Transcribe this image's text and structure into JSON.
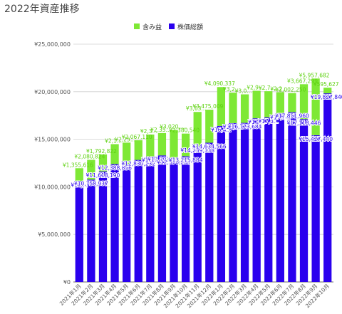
{
  "title": "2022年資産推移",
  "legend": [
    {
      "label": "含み益",
      "color": "#7ee835"
    },
    {
      "label": "株価総額",
      "color": "#2a00ee"
    }
  ],
  "chart_data": {
    "type": "bar",
    "stacked": true,
    "title": "2022年資産推移",
    "categories": [
      "2021年1月",
      "2021年2月",
      "2021年3月",
      "2021年4月",
      "2021年5月",
      "2021年6月",
      "2021年7月",
      "2021年8月",
      "2021年9月",
      "2021年10月",
      "2021年11月",
      "2021年12月",
      "2022年1月",
      "2022年2月",
      "2022年3月",
      "2022年4月",
      "2022年5月",
      "2022年6月",
      "2022年7月",
      "2022年8月",
      "2022年9月",
      "2022年10月"
    ],
    "ylim": [
      0,
      25000000
    ],
    "yticks": [
      0,
      5000000,
      10000000,
      15000000,
      20000000,
      25000000
    ],
    "ytick_labels": [
      "¥0",
      "¥5,000,000",
      "¥10,000,000",
      "¥15,000,000",
      "¥20,000,000",
      "¥25,000,000"
    ],
    "legend_position": "top",
    "grid": true,
    "series": [
      {
        "name": "株価総額",
        "color": "#2a00ee",
        "values": [
          10600000,
          10758937,
          11618190,
          12388856,
          12400000,
          12830232,
          13200000,
          13303000,
          12970207,
          13215884,
          14239338,
          14634566,
          16400000,
          16700000,
          16723684,
          17200000,
          17300000,
          17700000,
          17851960,
          17118446,
          15427440,
          19827840
        ],
        "labels": [
          "¥10,...",
          "¥10,758,937",
          "¥11,618,190",
          "¥12,388,856",
          "",
          "¥12,830,232",
          "¥13,...",
          "¥13,303,...",
          "¥12,970,207",
          "¥13,215,884",
          "¥14,239,338",
          "¥14,634,566",
          "¥16,4...",
          "¥16,7...",
          "¥16,723,684",
          "¥17,...",
          "¥17,3...",
          "¥17,7...",
          "¥17,851,960",
          "¥17,118,446",
          "¥15,427,440",
          "¥19,827,840"
        ]
      },
      {
        "name": "含み益",
        "color": "#7ee835",
        "values": [
          1355616,
          2080824,
          1792822,
          2100000,
          2250000,
          2067110,
          2300000,
          2350000,
          3020000,
          2380540,
          3632000,
          3475009,
          4090337,
          3200000,
          3000000,
          2900000,
          2750000,
          2250000,
          2002250,
          3667299,
          5957682,
          595627
        ],
        "labels": [
          "¥1,355,616",
          "¥2,080,824",
          "¥1,792,822",
          "¥2,1...",
          "¥2,25...",
          "¥2,067,110",
          "¥2,3...",
          "¥2,35...",
          "¥3,020,...",
          "¥2,380,540",
          "¥3,63...",
          "¥3,475,009",
          "¥4,090,337",
          "¥3,2...",
          "¥3,0...",
          "¥2,9...",
          "¥2,7...",
          "¥2,2...",
          "¥2,002,250",
          "¥3,667,299",
          "¥5,957,682",
          "¥595,627"
        ]
      }
    ]
  }
}
